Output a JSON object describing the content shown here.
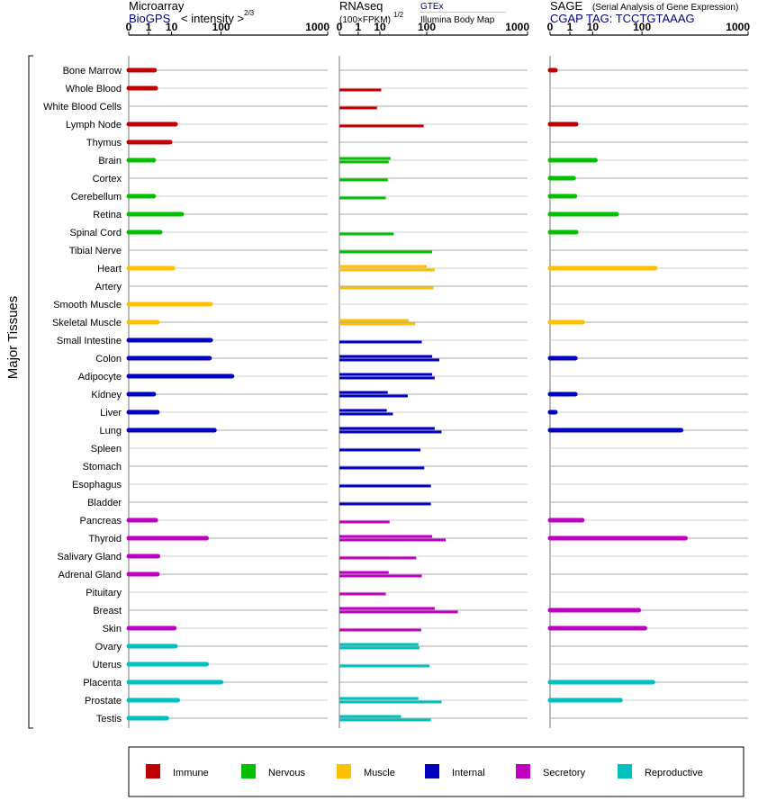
{
  "chart_data": {
    "type": "bar",
    "orientation": "horizontal",
    "y_axis_label": "Major Tissues",
    "tissues": [
      "Bone Marrow",
      "Whole Blood",
      "White Blood Cells",
      "Lymph Node",
      "Thymus",
      "Brain",
      "Cortex",
      "Cerebellum",
      "Retina",
      "Spinal Cord",
      "Tibial Nerve",
      "Heart",
      "Artery",
      "Smooth Muscle",
      "Skeletal Muscle",
      "Small Intestine",
      "Colon",
      "Adipocyte",
      "Kidney",
      "Liver",
      "Lung",
      "Spleen",
      "Stomach",
      "Esophagus",
      "Bladder",
      "Pancreas",
      "Thyroid",
      "Salivary Gland",
      "Adrenal Gland",
      "Pituitary",
      "Breast",
      "Skin",
      "Ovary",
      "Uterus",
      "Placenta",
      "Prostate",
      "Testis"
    ],
    "tissue_groups": [
      "Immune",
      "Immune",
      "Immune",
      "Immune",
      "Immune",
      "Nervous",
      "Nervous",
      "Nervous",
      "Nervous",
      "Nervous",
      "Nervous",
      "Muscle",
      "Muscle",
      "Muscle",
      "Muscle",
      "Internal",
      "Internal",
      "Internal",
      "Internal",
      "Internal",
      "Internal",
      "Internal",
      "Internal",
      "Internal",
      "Internal",
      "Secretory",
      "Secretory",
      "Secretory",
      "Secretory",
      "Secretory",
      "Secretory",
      "Secretory",
      "Reproductive",
      "Reproductive",
      "Reproductive",
      "Reproductive",
      "Reproductive"
    ],
    "legend": [
      {
        "label": "Immune",
        "color": "#c00000"
      },
      {
        "label": "Nervous",
        "color": "#00c000"
      },
      {
        "label": "Muscle",
        "color": "#ffc000"
      },
      {
        "label": "Internal",
        "color": "#0000c0"
      },
      {
        "label": "Secretory",
        "color": "#c000c0"
      },
      {
        "label": "Reproductive",
        "color": "#00c0c0"
      }
    ],
    "x_ticks": [
      0,
      1,
      10,
      100,
      1000
    ],
    "panels": [
      {
        "title": "Microarray",
        "subtitle_link": "BioGPS",
        "subtitle_text": "< intensity >",
        "exponent": "2/3",
        "values": [
          2.2,
          2.5,
          null,
          13,
          9,
          2,
          null,
          2,
          19,
          4,
          null,
          11,
          null,
          70,
          3,
          70,
          67,
          140,
          2,
          3,
          80,
          null,
          null,
          null,
          null,
          2.5,
          60,
          3.2,
          3,
          null,
          null,
          12,
          13,
          60,
          100,
          15,
          7
        ]
      },
      {
        "title": "RNAseq",
        "subtitle_line1": "(100×FPKM)",
        "exponent": "1/2",
        "source_link": "GTEx",
        "source_text": "Illumina Body Map",
        "values_gtex": [
          null,
          11,
          null,
          90,
          null,
          20,
          17,
          15,
          null,
          24,
          120,
          100,
          125,
          null,
          50,
          84,
          120,
          120,
          17,
          16,
          130,
          80,
          92,
          115,
          115,
          19,
          120,
          68,
          18,
          null,
          130,
          82,
          74,
          110,
          null,
          74,
          35
        ],
        "values_bodymap": [
          null,
          null,
          8,
          null,
          null,
          18,
          null,
          null,
          null,
          null,
          null,
          130,
          null,
          null,
          65,
          null,
          150,
          130,
          48,
          23,
          160,
          null,
          null,
          null,
          null,
          null,
          180,
          null,
          84,
          15,
          250,
          null,
          77,
          null,
          null,
          160,
          115
        ]
      },
      {
        "title": "SAGE",
        "subtitle_text": "(Serial Analysis of Gene Expression)",
        "tag_line": "CGAP TAG: TCCTGTAAAG",
        "values": [
          0.02,
          null,
          null,
          2.3,
          null,
          12,
          1.7,
          2,
          38,
          2.3,
          null,
          150,
          null,
          null,
          4.5,
          null,
          2.1,
          null,
          2.1,
          0.02,
          290,
          null,
          null,
          null,
          null,
          4.3,
          320,
          null,
          null,
          null,
          90,
          110,
          null,
          null,
          140,
          45,
          null
        ]
      }
    ]
  }
}
